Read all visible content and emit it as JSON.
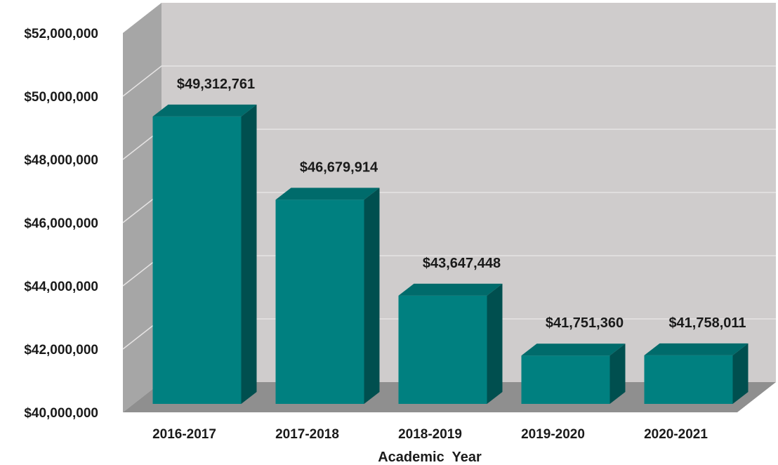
{
  "chart_data": {
    "type": "bar",
    "style": "3d-column",
    "title": "",
    "xlabel": "Academic  Year",
    "ylabel": "",
    "categories": [
      "2016-2017",
      "2017-2018",
      "2018-2019",
      "2019-2020",
      "2020-2021"
    ],
    "values": [
      49312761,
      46679914,
      43647448,
      41751360,
      41758011
    ],
    "data_labels": [
      "$49,312,761",
      "$46,679,914",
      "$43,647,448",
      "$41,751,360",
      "$41,758,011"
    ],
    "ylim": [
      40000000,
      52000000
    ],
    "yticks": [
      40000000,
      42000000,
      44000000,
      46000000,
      48000000,
      50000000,
      52000000
    ],
    "ytick_labels": [
      "$40,000,000",
      "$42,000,000",
      "$44,000,000",
      "$46,000,000",
      "$48,000,000",
      "$50,000,000",
      "$52,000,000"
    ],
    "grid": true,
    "legend": "none",
    "colors": {
      "bar_front": "#008080",
      "bar_top": "#006b6b",
      "bar_side": "#004f4f",
      "back_wall": "#cfcccc",
      "side_wall": "#a6a6a6",
      "floor": "#8f8f8f",
      "gridline": "#e6e4e4"
    }
  }
}
